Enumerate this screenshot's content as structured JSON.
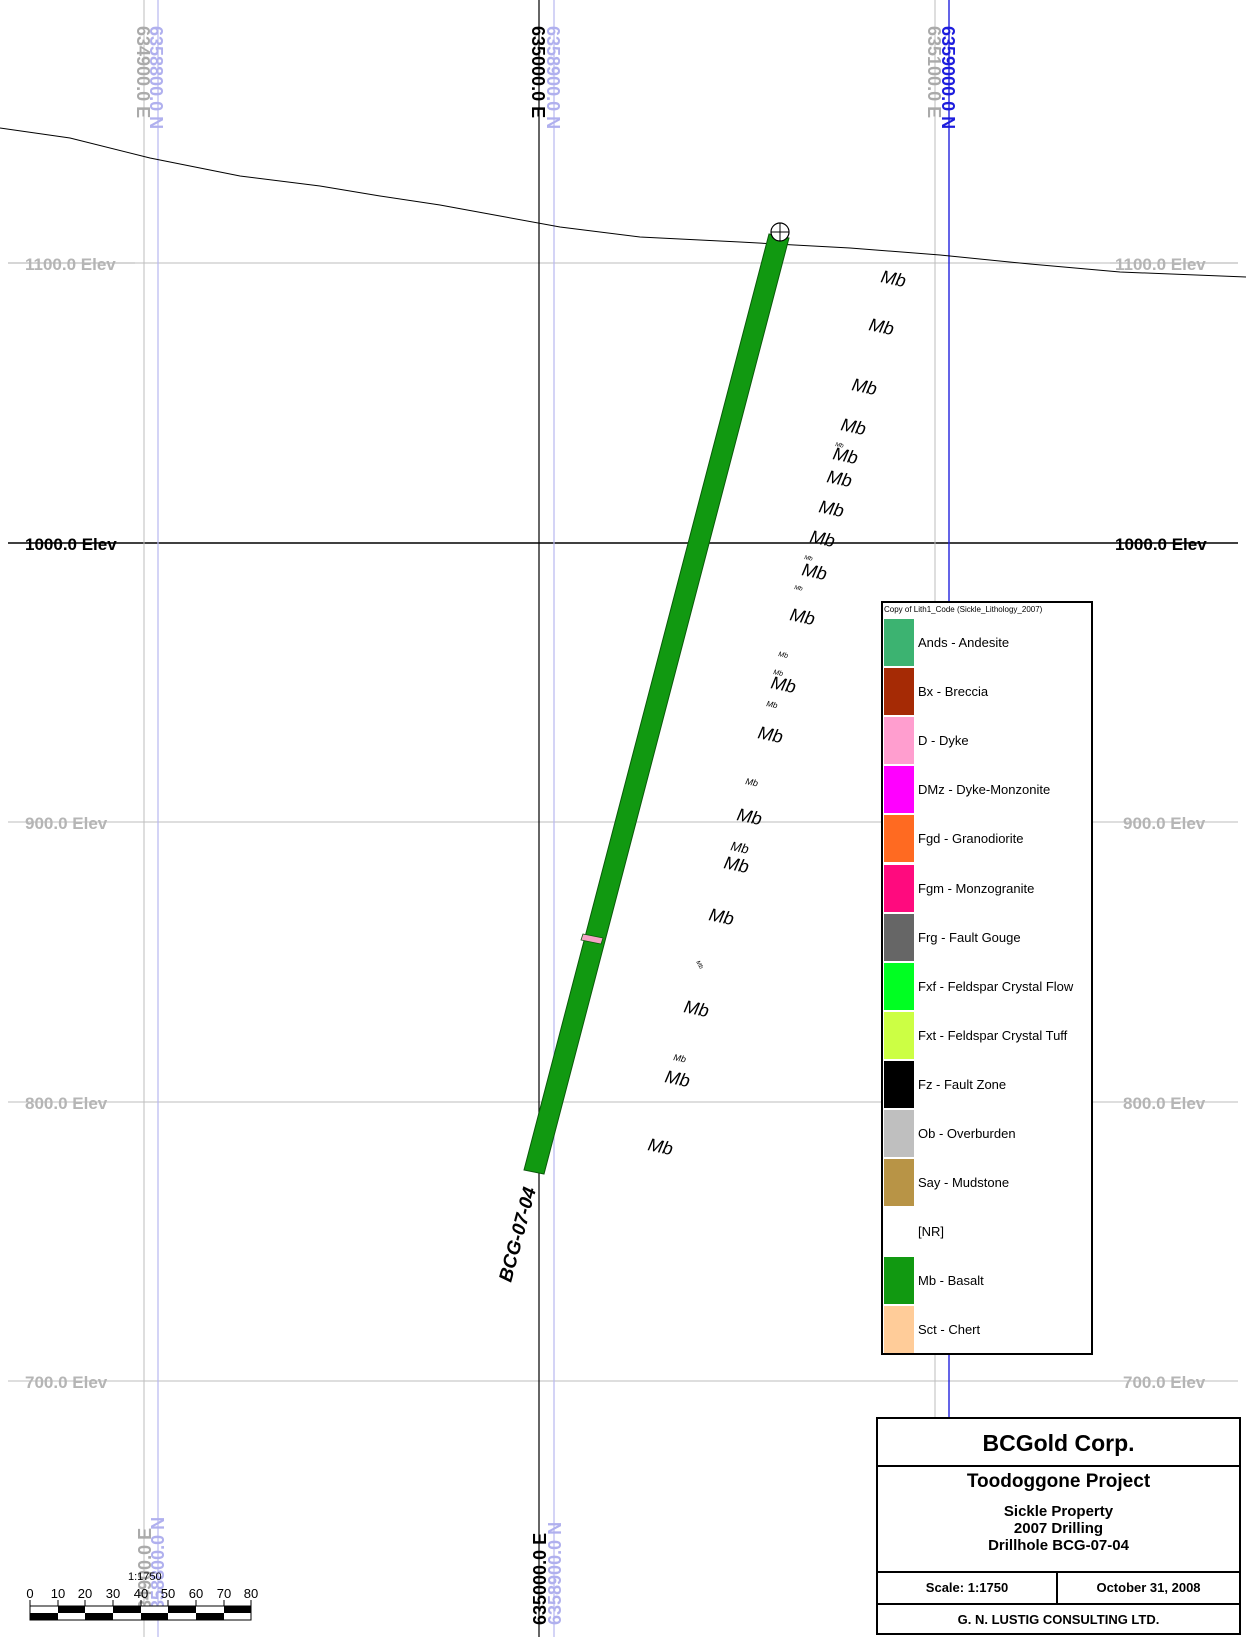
{
  "elevation_labels": [
    {
      "text": "1100.0 Elev",
      "elev": 1100
    },
    {
      "text": "1000.0 Elev",
      "elev": 1000
    },
    {
      "text": "900.0 Elev",
      "elev": 900
    },
    {
      "text": "800.0 Elev",
      "elev": 800
    },
    {
      "text": "700.0 Elev",
      "elev": 700
    }
  ],
  "grid_top_labels": {
    "n6358800": "6358800.0 N",
    "e634900": "634900.0 E",
    "e635000": "635000.0 E",
    "n6358900": "6358900.0 N",
    "e635100": "635100.0 E",
    "n6359000": "6359000.0 N"
  },
  "grid_bottom_labels": {
    "n6358800": "6358800.0 N",
    "e634900": "634900.0 E",
    "e635000": "635000.0 E",
    "n6358900": "6358900.0 N"
  },
  "drillhole": {
    "name": "BCG-07-04",
    "lithology": "Mb",
    "color": "#119911",
    "dyke_color": "#f4a3c5"
  },
  "mb_annotations": [
    "Mb",
    "Mb",
    "Mb",
    "Mb",
    "Mb",
    "Mb",
    "Mb",
    "Mb",
    "Mb",
    "Mb",
    "Mb",
    "Mb",
    "Mb",
    "Mb",
    "Mb",
    "Mb",
    "Mb",
    "Mb",
    "Mb",
    "Mb",
    "Mb",
    "Mb",
    "Mb",
    "Mb"
  ],
  "legend": {
    "title": "Copy of Lith1_Code (Sickle_Lithology_2007)",
    "items": [
      {
        "label": "Ands - Andesite",
        "color": "#3cb371"
      },
      {
        "label": "Bx - Breccia",
        "color": "#a52a05"
      },
      {
        "label": "D - Dyke",
        "color": "#ff9ecf"
      },
      {
        "label": "DMz - Dyke-Monzonite",
        "color": "#ff00ff"
      },
      {
        "label": "Fgd - Granodiorite",
        "color": "#ff6a21"
      },
      {
        "label": "Fgm - Monzogranite",
        "color": "#ff0a7e"
      },
      {
        "label": "Frg - Fault Gouge",
        "color": "#666666"
      },
      {
        "label": "Fxf - Feldspar Crystal Flow",
        "color": "#00ff22"
      },
      {
        "label": "Fxt - Feldspar Crystal Tuff",
        "color": "#ccff44"
      },
      {
        "label": "Fz - Fault Zone",
        "color": "#000000"
      },
      {
        "label": "Ob - Overburden",
        "color": "#bfbfbf"
      },
      {
        "label": "Say - Mudstone",
        "color": "#b89446"
      },
      {
        "label": "[NR]",
        "color": "#ffffff"
      },
      {
        "label": "Mb - Basalt",
        "color": "#119911"
      },
      {
        "label": "Sct - Chert",
        "color": "#ffcc99"
      }
    ]
  },
  "title_block": {
    "company": "BCGold Corp.",
    "project": "Toodoggone Project",
    "property": "Sickle Property",
    "program": "2007 Drilling",
    "drillhole": "Drillhole BCG-07-04",
    "scale": "Scale: 1:1750",
    "date": "October 31, 2008",
    "firm": "G. N. LUSTIG CONSULTING LTD."
  },
  "scale_bar": {
    "ratio": "1:1750",
    "ticks": [
      "0",
      "10",
      "20",
      "30",
      "40",
      "50",
      "60",
      "70",
      "80"
    ]
  }
}
